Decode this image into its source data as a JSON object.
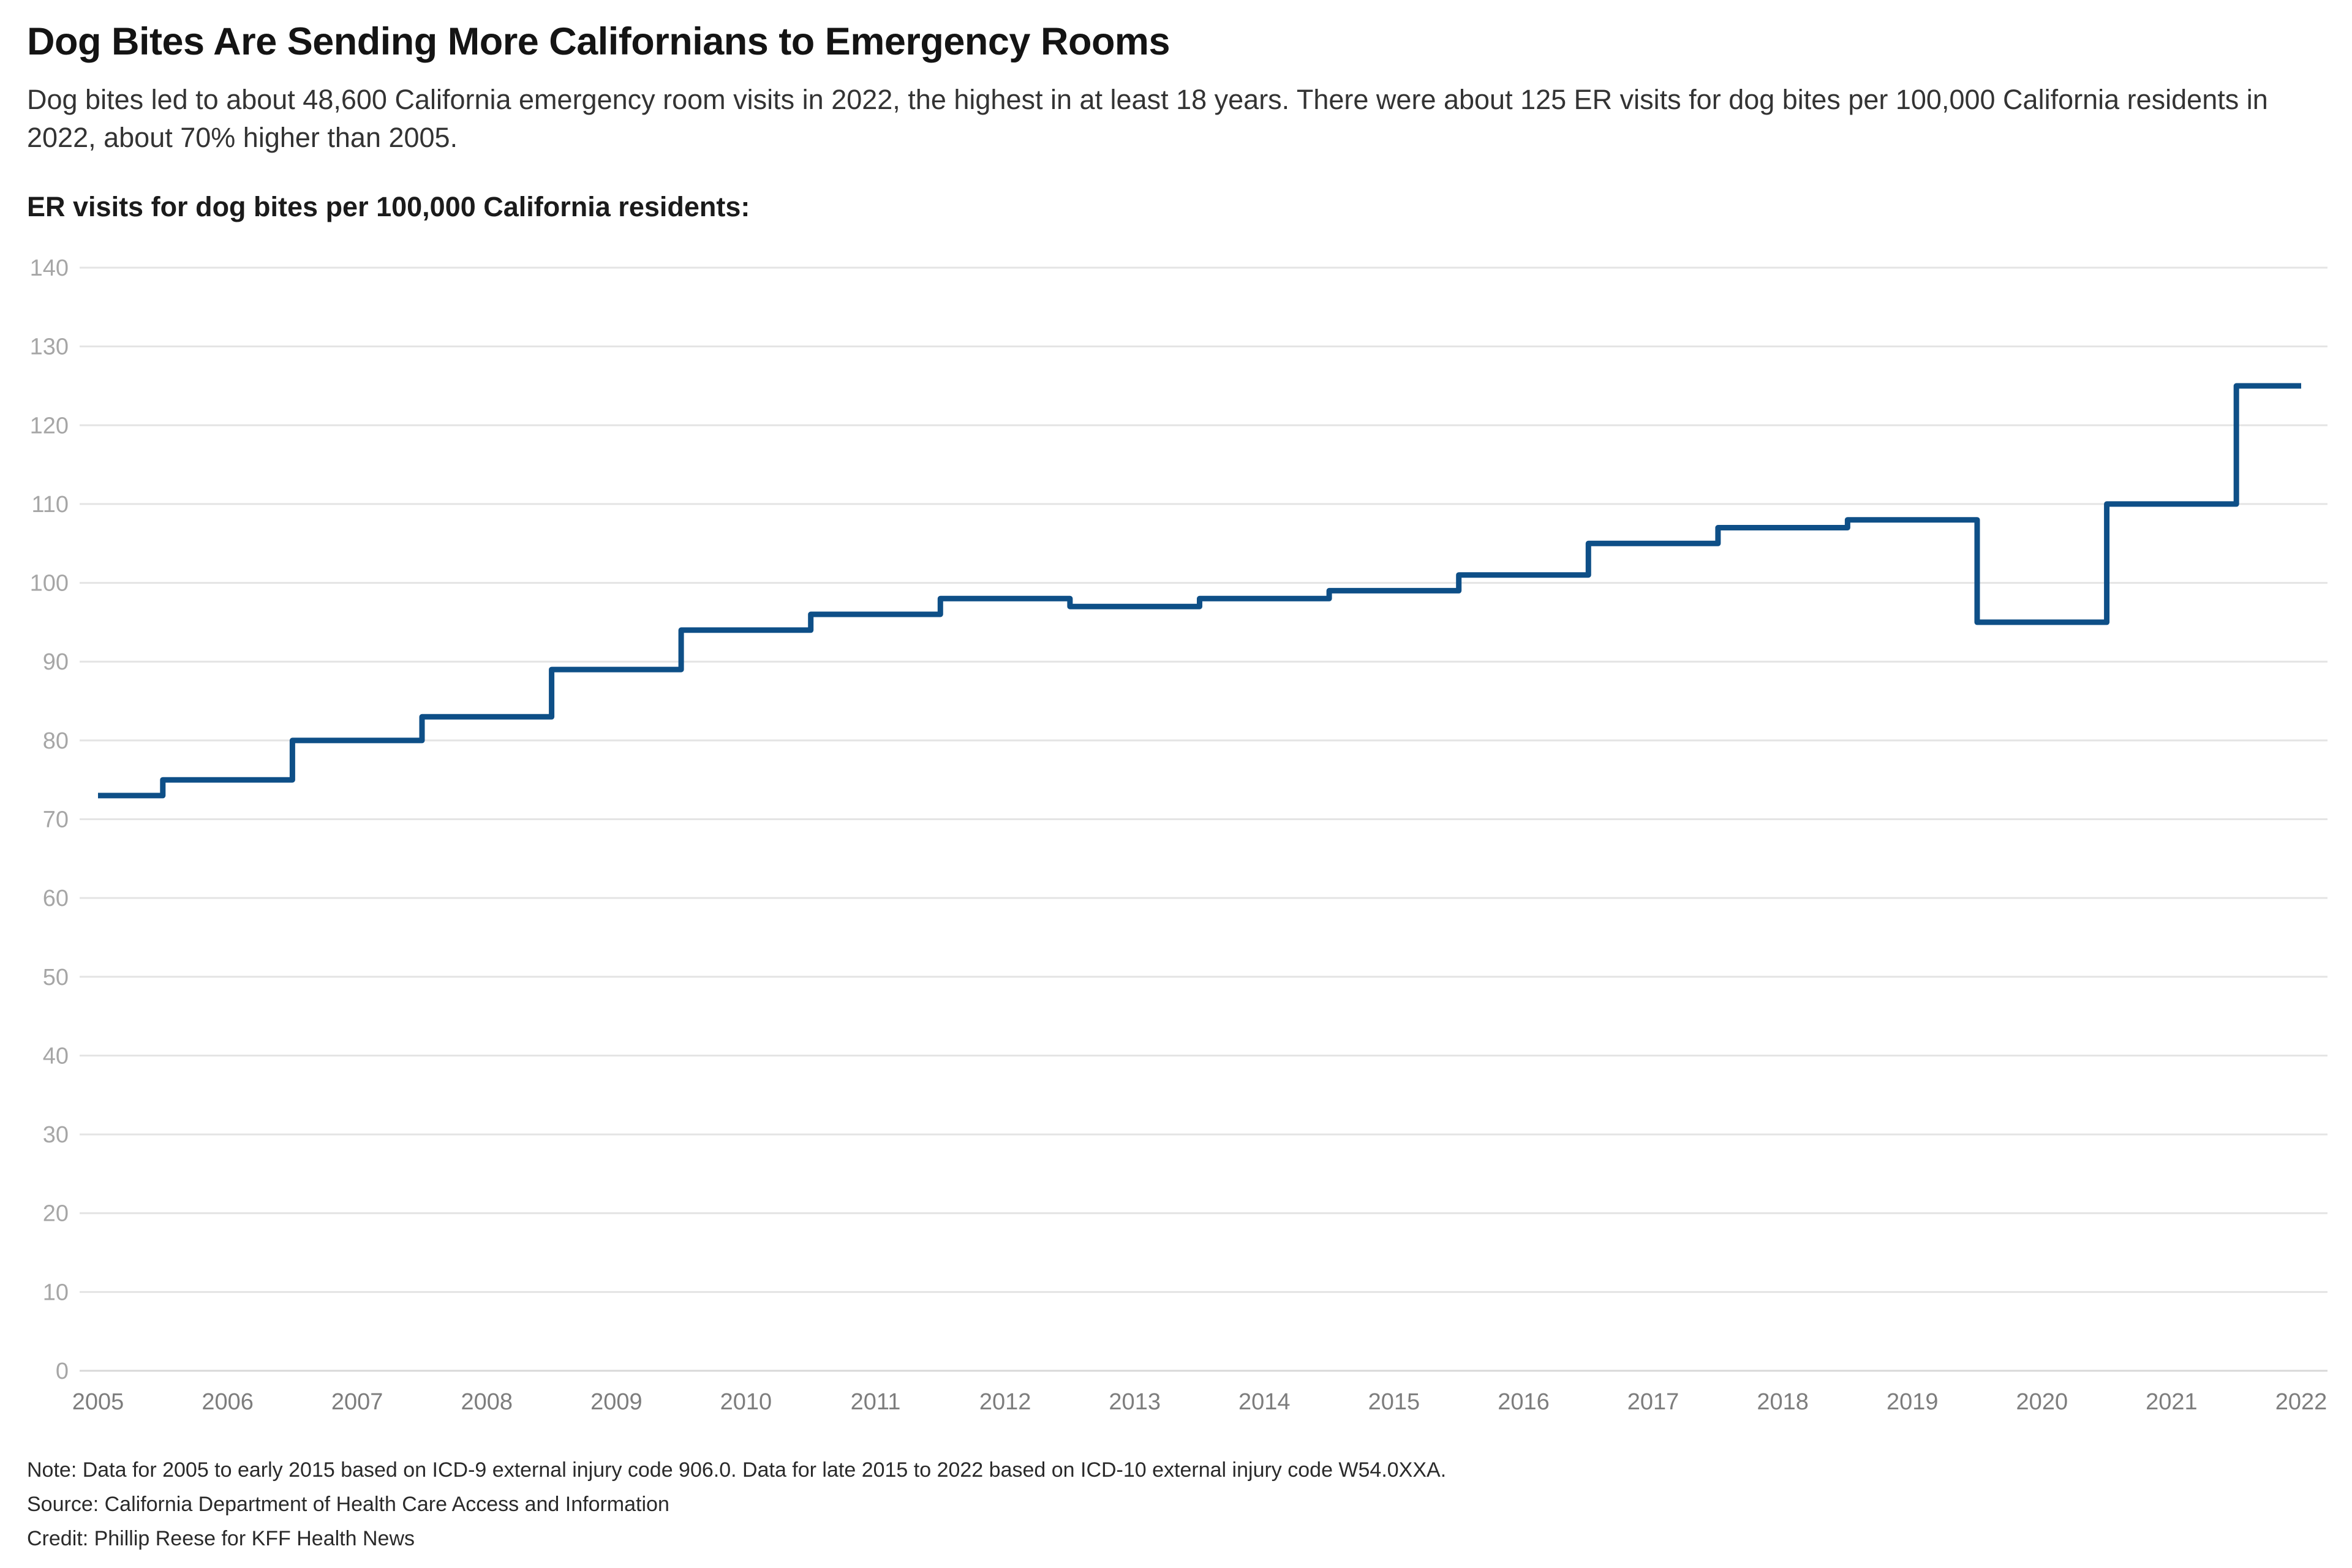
{
  "header": {
    "title": "Dog Bites Are Sending More Californians to Emergency Rooms",
    "subtitle": "Dog bites led to about 48,600 California emergency room visits in 2022, the highest in at least 18 years. There were about 125 ER visits for dog bites per 100,000 California residents in 2022, about 70% higher than 2005."
  },
  "chart_heading": "ER visits for dog bites per 100,000 California residents:",
  "chart_data": {
    "type": "line",
    "subtype": "step-middle",
    "title": "ER visits for dog bites per 100,000 California residents:",
    "xlabel": "",
    "ylabel": "",
    "x": [
      2005,
      2006,
      2007,
      2008,
      2009,
      2010,
      2011,
      2012,
      2013,
      2014,
      2015,
      2016,
      2017,
      2018,
      2019,
      2020,
      2021,
      2022
    ],
    "series": [
      {
        "name": "ER visits for dog bites per 100,000 California residents",
        "values": [
          73,
          75,
          80,
          83,
          89,
          94,
          96,
          98,
          97,
          98,
          99,
          101,
          105,
          107,
          108,
          95,
          110,
          125
        ]
      }
    ],
    "ylim": [
      0,
      140
    ],
    "y_ticks": [
      0,
      10,
      20,
      30,
      40,
      50,
      60,
      70,
      80,
      90,
      100,
      110,
      120,
      130,
      140
    ],
    "x_ticks": [
      2005,
      2006,
      2007,
      2008,
      2009,
      2010,
      2011,
      2012,
      2013,
      2014,
      2015,
      2016,
      2017,
      2018,
      2019,
      2020,
      2021,
      2022
    ],
    "grid": "horizontal",
    "legend": "none",
    "line_color": "#0e4f87"
  },
  "colors": {
    "line": "#0e4f87",
    "gridline": "#e4e4e4",
    "baseline": "#d8d8d8",
    "y_tick_label": "#a6a6a6",
    "x_tick_label": "#7d7d7d",
    "background": "#ffffff"
  },
  "footer": {
    "note": "Note: Data for 2005 to early 2015 based on ICD-9 external injury code 906.0. Data for late 2015 to 2022 based on ICD-10 external injury code W54.0XXA.",
    "source": "Source: California Department of Health Care Access and Information",
    "credit": "Credit: Phillip Reese for KFF Health News"
  }
}
